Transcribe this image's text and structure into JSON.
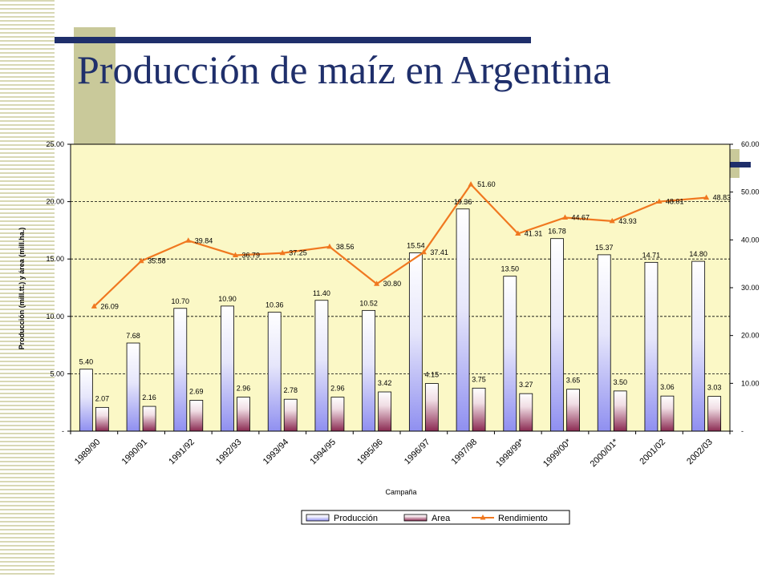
{
  "slide": {
    "title": "Producción de maíz en Argentina"
  },
  "colors": {
    "title": "#1f2f6b",
    "plot_bg": "#fbf8c6",
    "produccion_bar": "#8f8ff0",
    "area_bar": "#8b2a52",
    "rendimiento_line": "#f07820"
  },
  "chart_data": {
    "type": "bar",
    "title": "",
    "xlabel": "Campaña",
    "ylabel": "Producción (mill.tt.) y área (mill.ha.)",
    "y2label": "",
    "categories": [
      "1989/90",
      "1990/91",
      "1991/92",
      "1992/93",
      "1993/94",
      "1994/95",
      "1995/96",
      "1996/97",
      "1997/98",
      "1998/99*",
      "1999/00*",
      "2000/01*",
      "2001/02",
      "2002/03"
    ],
    "series": [
      {
        "name": "Producción",
        "kind": "bar",
        "axis": "left",
        "values": [
          5.4,
          7.68,
          10.7,
          10.9,
          10.36,
          11.4,
          10.52,
          15.54,
          19.36,
          13.5,
          16.78,
          15.37,
          14.71,
          14.8
        ],
        "labels": [
          "5.40",
          "7.68",
          "10.70",
          "10.90",
          "10.36",
          "11.40",
          "10.52",
          "15.54",
          "19.36",
          "13.50",
          "16.78",
          "15.37",
          "14.71",
          "14.80"
        ]
      },
      {
        "name": "Area",
        "kind": "bar",
        "axis": "left",
        "values": [
          2.07,
          2.16,
          2.69,
          2.96,
          2.78,
          2.96,
          3.42,
          4.15,
          3.75,
          3.27,
          3.65,
          3.5,
          3.06,
          3.03
        ],
        "labels": [
          "2.07",
          "2.16",
          "2.69",
          "2.96",
          "2.78",
          "2.96",
          "3.42",
          "4.15",
          "3.75",
          "3.27",
          "3.65",
          "3.50",
          "3.06",
          "3.03"
        ]
      },
      {
        "name": "Rendimiento",
        "kind": "line",
        "axis": "right",
        "values": [
          26.09,
          35.58,
          39.84,
          36.79,
          37.25,
          38.56,
          30.8,
          37.41,
          51.6,
          41.31,
          44.67,
          43.93,
          48.01,
          48.83
        ],
        "labels": [
          "26.09",
          "35.58",
          "39.84",
          "36.79",
          "37.25",
          "38.56",
          "30.80",
          "37.41",
          "51.60",
          "41.31",
          "44.67",
          "43.93",
          "48.01",
          "48.83"
        ]
      }
    ],
    "ylim": [
      0,
      25
    ],
    "y2lim": [
      0,
      60
    ],
    "yticks": [
      0,
      5,
      10,
      15,
      20,
      25
    ],
    "ytick_labels": [
      "-",
      "5.00",
      "10.00",
      "15.00",
      "20.00",
      "25.00"
    ],
    "y2ticks": [
      0,
      10,
      20,
      30,
      40,
      50,
      60
    ],
    "y2tick_labels": [
      "-",
      "10.00",
      "20.00",
      "30.00",
      "40.00",
      "50.00",
      "60.00"
    ],
    "grid": true,
    "legend_position": "bottom"
  }
}
